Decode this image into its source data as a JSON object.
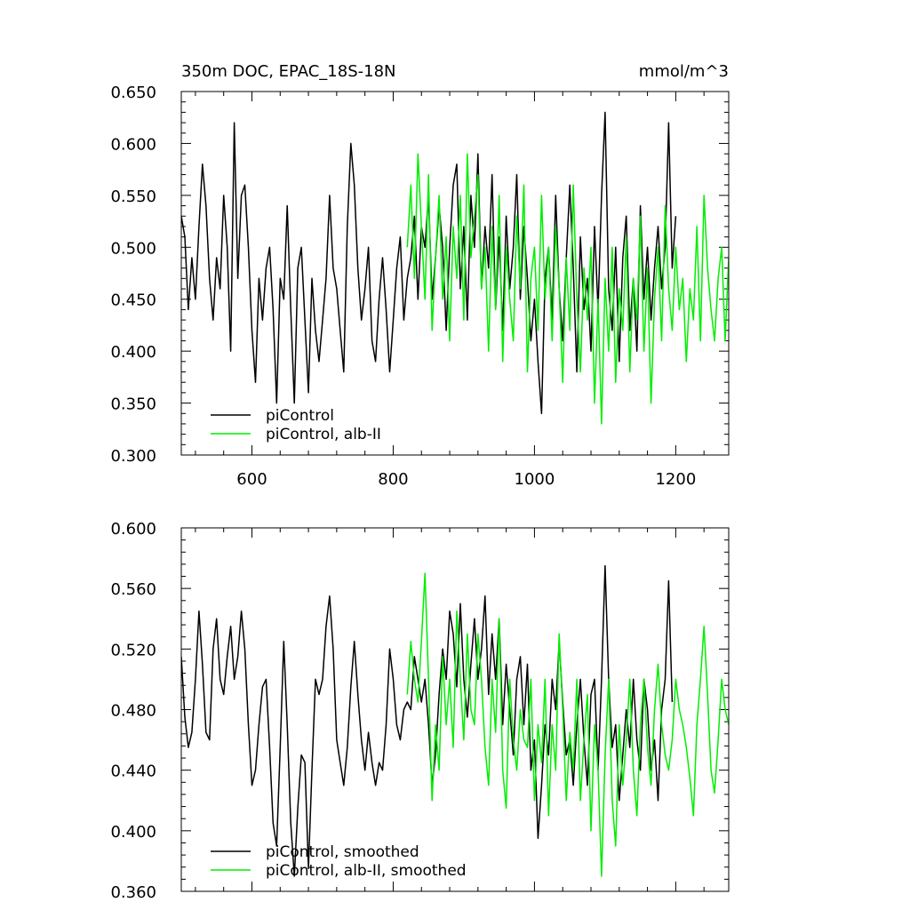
{
  "chart_data": [
    {
      "type": "line",
      "title": "350m DOC, EPAC_18S-18N",
      "units": "mmol/m^3",
      "xlim": [
        500,
        1275
      ],
      "ylim": [
        0.3,
        0.65
      ],
      "x_ticks": [
        600,
        800,
        1000,
        1200
      ],
      "x_tick_labels": [
        "600",
        "800",
        "1000",
        "1200"
      ],
      "y_ticks": [
        0.3,
        0.35,
        0.4,
        0.45,
        0.5,
        0.55,
        0.6,
        0.65
      ],
      "y_tick_labels": [
        "0.300",
        "0.350",
        "0.400",
        "0.450",
        "0.500",
        "0.550",
        "0.600",
        "0.650"
      ],
      "legend_position": "bottom-left",
      "series": [
        {
          "name": "piControl",
          "color": "#000000",
          "x": [
            500,
            505,
            510,
            515,
            520,
            525,
            530,
            535,
            540,
            545,
            550,
            555,
            560,
            565,
            570,
            575,
            580,
            585,
            590,
            595,
            600,
            605,
            610,
            615,
            620,
            625,
            630,
            635,
            640,
            645,
            650,
            655,
            660,
            665,
            670,
            675,
            680,
            685,
            690,
            695,
            700,
            705,
            710,
            715,
            720,
            725,
            730,
            735,
            740,
            745,
            750,
            755,
            760,
            765,
            770,
            775,
            780,
            785,
            790,
            795,
            800,
            805,
            810,
            815,
            820,
            825,
            830,
            835,
            840,
            845,
            850,
            855,
            860,
            865,
            870,
            875,
            880,
            885,
            890,
            895,
            900,
            905,
            910,
            915,
            920,
            925,
            930,
            935,
            940,
            945,
            950,
            955,
            960,
            965,
            970,
            975,
            980,
            985,
            990,
            995,
            1000,
            1005,
            1010,
            1015,
            1020,
            1025,
            1030,
            1035,
            1040,
            1045,
            1050,
            1055,
            1060,
            1065,
            1070,
            1075,
            1080,
            1085,
            1090,
            1095,
            1100,
            1105,
            1110,
            1115,
            1120,
            1125,
            1130,
            1135,
            1140,
            1145,
            1150,
            1155,
            1160,
            1165,
            1170,
            1175,
            1180,
            1185,
            1190,
            1195,
            1200
          ],
          "y": [
            0.53,
            0.51,
            0.44,
            0.49,
            0.45,
            0.52,
            0.58,
            0.54,
            0.47,
            0.43,
            0.49,
            0.46,
            0.55,
            0.5,
            0.4,
            0.62,
            0.47,
            0.55,
            0.56,
            0.5,
            0.42,
            0.37,
            0.47,
            0.43,
            0.48,
            0.5,
            0.44,
            0.35,
            0.47,
            0.45,
            0.54,
            0.44,
            0.35,
            0.48,
            0.5,
            0.43,
            0.36,
            0.47,
            0.42,
            0.39,
            0.43,
            0.47,
            0.55,
            0.48,
            0.46,
            0.42,
            0.38,
            0.52,
            0.6,
            0.56,
            0.48,
            0.43,
            0.46,
            0.5,
            0.41,
            0.39,
            0.45,
            0.49,
            0.44,
            0.38,
            0.43,
            0.48,
            0.51,
            0.43,
            0.47,
            0.49,
            0.53,
            0.45,
            0.52,
            0.5,
            0.55,
            0.45,
            0.49,
            0.54,
            0.5,
            0.42,
            0.5,
            0.56,
            0.58,
            0.46,
            0.52,
            0.43,
            0.55,
            0.5,
            0.59,
            0.46,
            0.52,
            0.48,
            0.57,
            0.44,
            0.51,
            0.42,
            0.53,
            0.46,
            0.5,
            0.57,
            0.45,
            0.52,
            0.47,
            0.41,
            0.45,
            0.39,
            0.34,
            0.47,
            0.5,
            0.43,
            0.55,
            0.46,
            0.41,
            0.49,
            0.56,
            0.48,
            0.38,
            0.51,
            0.44,
            0.47,
            0.4,
            0.52,
            0.44,
            0.55,
            0.63,
            0.46,
            0.42,
            0.5,
            0.39,
            0.49,
            0.53,
            0.42,
            0.47,
            0.4,
            0.54,
            0.45,
            0.5,
            0.43,
            0.48,
            0.52,
            0.46,
            0.5,
            0.62,
            0.48,
            0.53
          ]
        },
        {
          "name": "piControl, alb-II",
          "color": "#00ee00",
          "x": [
            820,
            825,
            830,
            835,
            840,
            845,
            850,
            855,
            860,
            865,
            870,
            875,
            880,
            885,
            890,
            895,
            900,
            905,
            910,
            915,
            920,
            925,
            930,
            935,
            940,
            945,
            950,
            955,
            960,
            965,
            970,
            975,
            980,
            985,
            990,
            995,
            1000,
            1005,
            1010,
            1015,
            1020,
            1025,
            1030,
            1035,
            1040,
            1045,
            1050,
            1055,
            1060,
            1065,
            1070,
            1075,
            1080,
            1085,
            1090,
            1095,
            1100,
            1105,
            1110,
            1115,
            1120,
            1125,
            1130,
            1135,
            1140,
            1145,
            1150,
            1155,
            1160,
            1165,
            1170,
            1175,
            1180,
            1185,
            1190,
            1195,
            1200,
            1205,
            1210,
            1215,
            1220,
            1225,
            1230,
            1235,
            1240,
            1245,
            1250,
            1255,
            1260,
            1265,
            1270,
            1275
          ],
          "y": [
            0.5,
            0.56,
            0.47,
            0.59,
            0.52,
            0.45,
            0.57,
            0.42,
            0.49,
            0.55,
            0.45,
            0.51,
            0.41,
            0.52,
            0.47,
            0.55,
            0.43,
            0.59,
            0.49,
            0.53,
            0.57,
            0.46,
            0.5,
            0.4,
            0.52,
            0.44,
            0.55,
            0.39,
            0.5,
            0.45,
            0.41,
            0.53,
            0.46,
            0.56,
            0.38,
            0.47,
            0.5,
            0.42,
            0.55,
            0.45,
            0.5,
            0.41,
            0.52,
            0.46,
            0.37,
            0.49,
            0.42,
            0.56,
            0.45,
            0.38,
            0.48,
            0.43,
            0.5,
            0.35,
            0.45,
            0.33,
            0.47,
            0.4,
            0.5,
            0.37,
            0.46,
            0.42,
            0.51,
            0.38,
            0.47,
            0.43,
            0.53,
            0.4,
            0.48,
            0.35,
            0.45,
            0.5,
            0.41,
            0.54,
            0.46,
            0.42,
            0.5,
            0.44,
            0.47,
            0.39,
            0.46,
            0.43,
            0.52,
            0.41,
            0.55,
            0.48,
            0.44,
            0.41,
            0.47,
            0.5,
            0.41,
            0.49
          ]
        }
      ]
    },
    {
      "type": "line",
      "xlim": [
        500,
        1275
      ],
      "ylim": [
        0.36,
        0.6
      ],
      "x_ticks": [
        600,
        800,
        1000,
        1200
      ],
      "y_ticks": [
        0.36,
        0.4,
        0.44,
        0.48,
        0.52,
        0.56,
        0.6
      ],
      "y_tick_labels": [
        "0.360",
        "0.400",
        "0.440",
        "0.480",
        "0.520",
        "0.560",
        "0.600"
      ],
      "legend_position": "bottom-left",
      "series": [
        {
          "name": "piControl, smoothed",
          "color": "#000000",
          "x": [
            500,
            505,
            510,
            515,
            520,
            525,
            530,
            535,
            540,
            545,
            550,
            555,
            560,
            565,
            570,
            575,
            580,
            585,
            590,
            595,
            600,
            605,
            610,
            615,
            620,
            625,
            630,
            635,
            640,
            645,
            650,
            655,
            660,
            665,
            670,
            675,
            680,
            685,
            690,
            695,
            700,
            705,
            710,
            715,
            720,
            725,
            730,
            735,
            740,
            745,
            750,
            755,
            760,
            765,
            770,
            775,
            780,
            785,
            790,
            795,
            800,
            805,
            810,
            815,
            820,
            825,
            830,
            835,
            840,
            845,
            850,
            855,
            860,
            865,
            870,
            875,
            880,
            885,
            890,
            895,
            900,
            905,
            910,
            915,
            920,
            925,
            930,
            935,
            940,
            945,
            950,
            955,
            960,
            965,
            970,
            975,
            980,
            985,
            990,
            995,
            1000,
            1005,
            1010,
            1015,
            1020,
            1025,
            1030,
            1035,
            1040,
            1045,
            1050,
            1055,
            1060,
            1065,
            1070,
            1075,
            1080,
            1085,
            1090,
            1095,
            1100,
            1105,
            1110,
            1115,
            1120,
            1125,
            1130,
            1135,
            1140,
            1145,
            1150,
            1155,
            1160,
            1165,
            1170,
            1175,
            1180,
            1185,
            1190,
            1195
          ],
          "y": [
            0.515,
            0.475,
            0.455,
            0.465,
            0.5,
            0.545,
            0.51,
            0.465,
            0.46,
            0.52,
            0.54,
            0.5,
            0.49,
            0.515,
            0.535,
            0.5,
            0.515,
            0.545,
            0.52,
            0.47,
            0.43,
            0.44,
            0.47,
            0.495,
            0.5,
            0.455,
            0.405,
            0.39,
            0.455,
            0.525,
            0.47,
            0.405,
            0.37,
            0.415,
            0.45,
            0.445,
            0.375,
            0.44,
            0.5,
            0.49,
            0.5,
            0.535,
            0.555,
            0.52,
            0.46,
            0.445,
            0.43,
            0.455,
            0.495,
            0.525,
            0.49,
            0.46,
            0.44,
            0.465,
            0.445,
            0.43,
            0.445,
            0.44,
            0.47,
            0.52,
            0.5,
            0.47,
            0.46,
            0.48,
            0.485,
            0.48,
            0.515,
            0.5,
            0.485,
            0.5,
            0.47,
            0.43,
            0.45,
            0.49,
            0.52,
            0.5,
            0.545,
            0.53,
            0.495,
            0.55,
            0.5,
            0.475,
            0.51,
            0.54,
            0.5,
            0.52,
            0.555,
            0.49,
            0.53,
            0.5,
            0.54,
            0.47,
            0.51,
            0.48,
            0.45,
            0.5,
            0.515,
            0.47,
            0.51,
            0.44,
            0.46,
            0.395,
            0.43,
            0.47,
            0.45,
            0.5,
            0.48,
            0.525,
            0.485,
            0.45,
            0.46,
            0.43,
            0.47,
            0.5,
            0.46,
            0.43,
            0.49,
            0.5,
            0.44,
            0.5,
            0.575,
            0.5,
            0.455,
            0.47,
            0.42,
            0.45,
            0.48,
            0.455,
            0.5,
            0.46,
            0.44,
            0.5,
            0.48,
            0.44,
            0.46,
            0.42,
            0.48,
            0.5,
            0.565,
            0.485
          ]
        },
        {
          "name": "piControl, alb-II, smoothed",
          "color": "#00ee00",
          "x": [
            820,
            825,
            830,
            835,
            840,
            845,
            850,
            855,
            860,
            865,
            870,
            875,
            880,
            885,
            890,
            895,
            900,
            905,
            910,
            915,
            920,
            925,
            930,
            935,
            940,
            945,
            950,
            955,
            960,
            965,
            970,
            975,
            980,
            985,
            990,
            995,
            1000,
            1005,
            1010,
            1015,
            1020,
            1025,
            1030,
            1035,
            1040,
            1045,
            1050,
            1055,
            1060,
            1065,
            1070,
            1075,
            1080,
            1085,
            1090,
            1095,
            1100,
            1105,
            1110,
            1115,
            1120,
            1125,
            1130,
            1135,
            1140,
            1145,
            1150,
            1155,
            1160,
            1165,
            1170,
            1175,
            1180,
            1185,
            1190,
            1195,
            1200,
            1205,
            1210,
            1215,
            1220,
            1225,
            1230,
            1235,
            1240,
            1245,
            1250,
            1255,
            1260,
            1265,
            1270,
            1275
          ],
          "y": [
            0.49,
            0.525,
            0.5,
            0.485,
            0.525,
            0.57,
            0.5,
            0.42,
            0.47,
            0.44,
            0.515,
            0.47,
            0.5,
            0.455,
            0.545,
            0.5,
            0.46,
            0.53,
            0.48,
            0.47,
            0.53,
            0.5,
            0.455,
            0.43,
            0.5,
            0.465,
            0.54,
            0.44,
            0.415,
            0.5,
            0.46,
            0.44,
            0.48,
            0.46,
            0.455,
            0.5,
            0.42,
            0.47,
            0.445,
            0.5,
            0.41,
            0.47,
            0.44,
            0.53,
            0.48,
            0.42,
            0.465,
            0.44,
            0.5,
            0.42,
            0.46,
            0.49,
            0.4,
            0.47,
            0.44,
            0.37,
            0.45,
            0.5,
            0.42,
            0.39,
            0.47,
            0.43,
            0.46,
            0.5,
            0.44,
            0.41,
            0.47,
            0.5,
            0.455,
            0.43,
            0.48,
            0.51,
            0.47,
            0.45,
            0.44,
            0.46,
            0.5,
            0.48,
            0.47,
            0.455,
            0.435,
            0.41,
            0.47,
            0.5,
            0.535,
            0.49,
            0.44,
            0.425,
            0.46,
            0.5,
            0.48,
            0.47
          ]
        }
      ]
    }
  ]
}
